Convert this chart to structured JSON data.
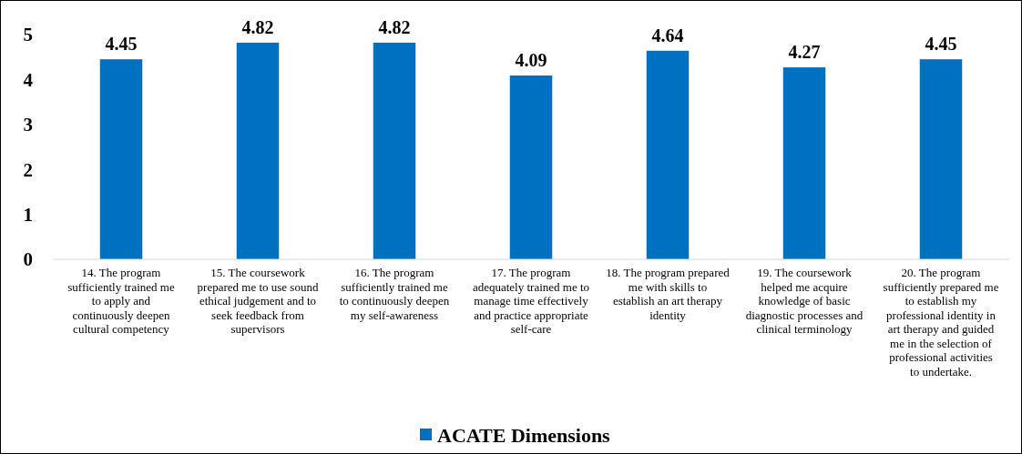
{
  "chart_data": {
    "type": "bar",
    "categories": [
      "14. The program sufficiently trained me to apply and continuously deepen cultural competency",
      "15. The coursework prepared me to use sound ethical judgement and to seek feedback from supervisors",
      "16. The program sufficiently trained me to continuously deepen my self-awareness",
      "17. The program adequately trained me to manage time effectively and practice appropriate self-care",
      "18. The program prepared me with skills to establish an art therapy identity",
      "19. The coursework helped me acquire knowledge of basic diagnostic processes and clinical terminology",
      "20. The program sufficiently prepared me to establish my professional identity in art therapy and guided me in the selection of professional activities to undertake."
    ],
    "series": [
      {
        "name": "ACATE Dimensions",
        "color": "#0070c0",
        "values": [
          4.45,
          4.82,
          4.82,
          4.09,
          4.64,
          4.27,
          4.45
        ]
      }
    ],
    "ylim": [
      0,
      5
    ],
    "yticks": [
      0,
      1,
      2,
      3,
      4,
      5
    ],
    "data_labels": true,
    "grid": false,
    "legend": "bottom"
  }
}
